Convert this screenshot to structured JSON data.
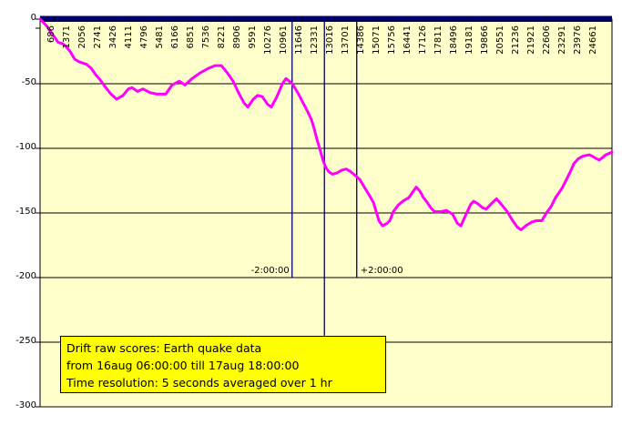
{
  "chart_data": {
    "type": "line",
    "title": "Drift raw scores: Earth quake data",
    "legend_lines": [
      "Drift raw scores: Earth quake data",
      "from 16aug 06:00:00  till 17aug 18:00:00",
      "Time resolution: 5 seconds averaged over 1 hr"
    ],
    "x_axis": {
      "tick_labels": [
        686,
        1371,
        2056,
        2741,
        3426,
        4111,
        4796,
        5481,
        6166,
        6851,
        7536,
        8221,
        8906,
        9591,
        10276,
        10961,
        11646,
        12331,
        13016,
        13701,
        14386,
        15071,
        15756,
        16441,
        17126,
        17811,
        18496,
        19181,
        19866,
        20551,
        21236,
        21921,
        22606,
        23291,
        23976,
        24661
      ],
      "label_interval": 685,
      "label_rotation_deg": -90
    },
    "y_axis": {
      "tick_labels": [
        "0",
        "-50",
        "-100",
        "-150",
        "-200",
        "-250",
        "-300"
      ],
      "tick_values": [
        0,
        -50,
        -100,
        -150,
        -200,
        -250,
        -300
      ],
      "range": [
        0,
        -300
      ],
      "grid": true
    },
    "event_lines": [
      {
        "sample": 11150,
        "label": "-2:00:00",
        "extends_to_value": -200
      },
      {
        "sample": 12580,
        "label": "",
        "extends_to_value": -245
      },
      {
        "sample": 14010,
        "label": "+2:00:00",
        "extends_to_value": -200
      }
    ],
    "series": [
      {
        "name": "drift raw score",
        "color": "#FF00FF",
        "points": [
          [
            1,
            0
          ],
          [
            280,
            -5
          ],
          [
            480,
            -10
          ],
          [
            640,
            -14
          ],
          [
            800,
            -18
          ],
          [
            1000,
            -19
          ],
          [
            1130,
            -21
          ],
          [
            1330,
            -25
          ],
          [
            1530,
            -31
          ],
          [
            1730,
            -33
          ],
          [
            2060,
            -35
          ],
          [
            2260,
            -38
          ],
          [
            2460,
            -43
          ],
          [
            2660,
            -47
          ],
          [
            2860,
            -52
          ],
          [
            3140,
            -58
          ],
          [
            3390,
            -62
          ],
          [
            3670,
            -59
          ],
          [
            3910,
            -54
          ],
          [
            4070,
            -53
          ],
          [
            4310,
            -56
          ],
          [
            4550,
            -54
          ],
          [
            4880,
            -57
          ],
          [
            5160,
            -58
          ],
          [
            5560,
            -58
          ],
          [
            5840,
            -51
          ],
          [
            6160,
            -48
          ],
          [
            6410,
            -51
          ],
          [
            6730,
            -46
          ],
          [
            7050,
            -42
          ],
          [
            7450,
            -38
          ],
          [
            7740,
            -36
          ],
          [
            8020,
            -36
          ],
          [
            8300,
            -42
          ],
          [
            8540,
            -48
          ],
          [
            8780,
            -57
          ],
          [
            9030,
            -65
          ],
          [
            9190,
            -68
          ],
          [
            9430,
            -62
          ],
          [
            9630,
            -59
          ],
          [
            9830,
            -60
          ],
          [
            10070,
            -66
          ],
          [
            10230,
            -68
          ],
          [
            10480,
            -60
          ],
          [
            10720,
            -50
          ],
          [
            10880,
            -46
          ],
          [
            11160,
            -50
          ],
          [
            11440,
            -58
          ],
          [
            11640,
            -65
          ],
          [
            11850,
            -72
          ],
          [
            12010,
            -78
          ],
          [
            12130,
            -85
          ],
          [
            12250,
            -93
          ],
          [
            12370,
            -100
          ],
          [
            12530,
            -110
          ],
          [
            12650,
            -115
          ],
          [
            12770,
            -118
          ],
          [
            12930,
            -120
          ],
          [
            13140,
            -119
          ],
          [
            13340,
            -117
          ],
          [
            13540,
            -116
          ],
          [
            13740,
            -118
          ],
          [
            13940,
            -121
          ],
          [
            14140,
            -124
          ],
          [
            14380,
            -131
          ],
          [
            14590,
            -137
          ],
          [
            14750,
            -142
          ],
          [
            14870,
            -149
          ],
          [
            14990,
            -156
          ],
          [
            15150,
            -160
          ],
          [
            15350,
            -158
          ],
          [
            15470,
            -156
          ],
          [
            15630,
            -149
          ],
          [
            15840,
            -144
          ],
          [
            16040,
            -141
          ],
          [
            16320,
            -138
          ],
          [
            16480,
            -134
          ],
          [
            16640,
            -130
          ],
          [
            16800,
            -133
          ],
          [
            16960,
            -138
          ],
          [
            17130,
            -142
          ],
          [
            17290,
            -146
          ],
          [
            17450,
            -149
          ],
          [
            17730,
            -149
          ],
          [
            17970,
            -148
          ],
          [
            18250,
            -151
          ],
          [
            18460,
            -158
          ],
          [
            18620,
            -160
          ],
          [
            18820,
            -152
          ],
          [
            19060,
            -143
          ],
          [
            19180,
            -141
          ],
          [
            19380,
            -143
          ],
          [
            19580,
            -146
          ],
          [
            19740,
            -147
          ],
          [
            19950,
            -143
          ],
          [
            20190,
            -139
          ],
          [
            20390,
            -143
          ],
          [
            20670,
            -149
          ],
          [
            20910,
            -156
          ],
          [
            21110,
            -161
          ],
          [
            21280,
            -163
          ],
          [
            21480,
            -160
          ],
          [
            21760,
            -157
          ],
          [
            21960,
            -156
          ],
          [
            22200,
            -156
          ],
          [
            22400,
            -150
          ],
          [
            22610,
            -145
          ],
          [
            22810,
            -138
          ],
          [
            23090,
            -131
          ],
          [
            23290,
            -124
          ],
          [
            23490,
            -117
          ],
          [
            23610,
            -112
          ],
          [
            23810,
            -108
          ],
          [
            24020,
            -106
          ],
          [
            24300,
            -105
          ],
          [
            24420,
            -106
          ],
          [
            24620,
            -108
          ],
          [
            24740,
            -109
          ],
          [
            24900,
            -107
          ],
          [
            25020,
            -105
          ],
          [
            25300,
            -103
          ]
        ]
      }
    ],
    "colors": {
      "plot_background": "#FFFFCC",
      "outer_background": "#FFFFFF",
      "gridline": "#000000",
      "zero_axis_band": "#000066",
      "event_line": "#000066",
      "series_line": "#FF00FF",
      "legend_background": "#FFFF00",
      "legend_border": "#000000",
      "text": "#000000"
    }
  }
}
